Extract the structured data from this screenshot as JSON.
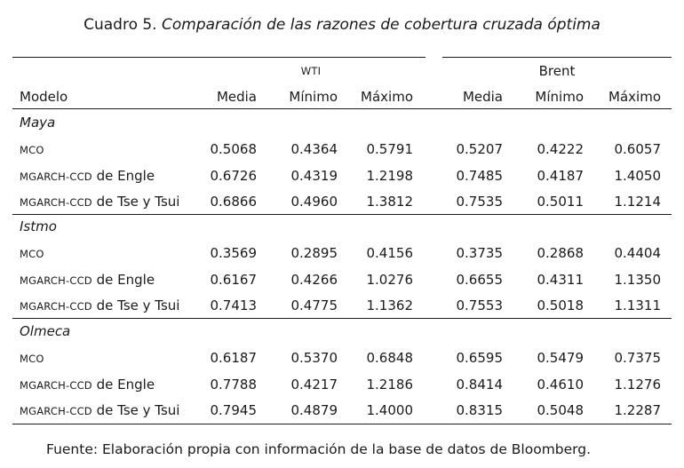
{
  "caption": {
    "label": "Cuadro 5.",
    "title": "Comparación de las razones de cobertura cruzada óptima"
  },
  "groups": {
    "wti": "WTI",
    "brent": "Brent"
  },
  "headers": {
    "model": "Modelo",
    "cols": [
      "Media",
      "Mínimo",
      "Máximo",
      "Media",
      "Mínimo",
      "Máximo"
    ]
  },
  "sections": [
    {
      "name": "Maya",
      "rows": [
        {
          "prefix": "MCO",
          "suffix": "",
          "values": [
            "0.5068",
            "0.4364",
            "0.5791",
            "0.5207",
            "0.4222",
            "0.6057"
          ]
        },
        {
          "prefix": "MGARCH-CCD",
          "suffix": " de Engle",
          "values": [
            "0.6726",
            "0.4319",
            "1.2198",
            "0.7485",
            "0.4187",
            "1.4050"
          ]
        },
        {
          "prefix": "MGARCH-CCD",
          "suffix": " de Tse y Tsui",
          "values": [
            "0.6866",
            "0.4960",
            "1.3812",
            "0.7535",
            "0.5011",
            "1.1214"
          ]
        }
      ]
    },
    {
      "name": "Istmo",
      "rows": [
        {
          "prefix": "MCO",
          "suffix": "",
          "values": [
            "0.3569",
            "0.2895",
            "0.4156",
            "0.3735",
            "0.2868",
            "0.4404"
          ]
        },
        {
          "prefix": "MGARCH-CCD",
          "suffix": " de Engle",
          "values": [
            "0.6167",
            "0.4266",
            "1.0276",
            "0.6655",
            "0.4311",
            "1.1350"
          ]
        },
        {
          "prefix": "MGARCH-CCD",
          "suffix": " de Tse y Tsui",
          "values": [
            "0.7413",
            "0.4775",
            "1.1362",
            "0.7553",
            "0.5018",
            "1.1311"
          ]
        }
      ]
    },
    {
      "name": "Olmeca",
      "rows": [
        {
          "prefix": "MCO",
          "suffix": "",
          "values": [
            "0.6187",
            "0.5370",
            "0.6848",
            "0.6595",
            "0.5479",
            "0.7375"
          ]
        },
        {
          "prefix": "MGARCH-CCD",
          "suffix": " de Engle",
          "values": [
            "0.7788",
            "0.4217",
            "1.2186",
            "0.8414",
            "0.4610",
            "1.1276"
          ]
        },
        {
          "prefix": "MGARCH-CCD",
          "suffix": " de Tse y Tsui",
          "values": [
            "0.7945",
            "0.4879",
            "1.4000",
            "0.8315",
            "0.5048",
            "1.2287"
          ]
        }
      ]
    }
  ],
  "source": "Fuente: Elaboración propia con información de la base de datos de Bloomberg."
}
